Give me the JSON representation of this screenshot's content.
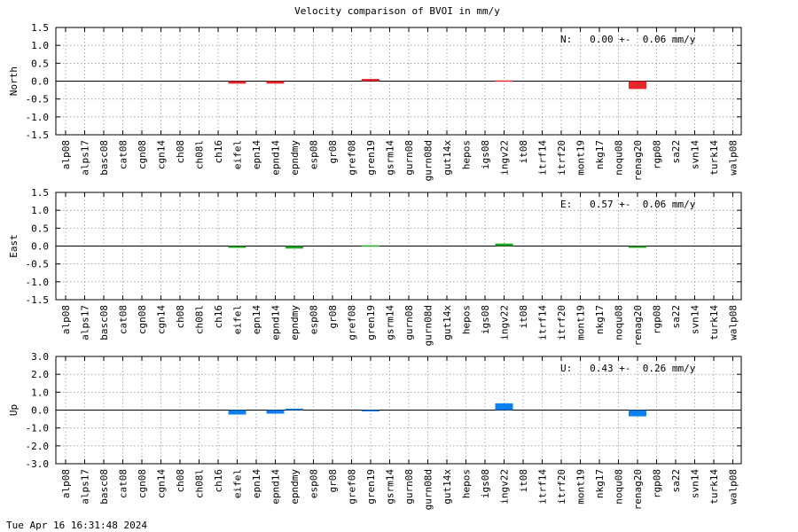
{
  "figure": {
    "title": "Velocity comparison of BVOI in mm/y",
    "timestamp": "Tue Apr 16 16:31:48 2024"
  },
  "chart_data": [
    {
      "type": "bar",
      "panel": "north",
      "ylabel": "North",
      "ylim": [
        -1.5,
        1.5
      ],
      "yticks": [
        "1.5",
        "1.0",
        "0.5",
        "0.0",
        "-0.5",
        "-1.0",
        "-1.5"
      ],
      "ytick_values": [
        1.5,
        1.0,
        0.5,
        0.0,
        -0.5,
        -1.0,
        -1.5
      ],
      "grid": true,
      "color": "#e8262b",
      "annotation": "N:   0.00 +-  0.06 mm/y",
      "categories": [
        "alp08",
        "alps17",
        "basc08",
        "cat08",
        "cgn08",
        "cgn14",
        "ch08",
        "ch08l",
        "ch16",
        "eifel",
        "epn14",
        "epnd14",
        "epndmy",
        "esp08",
        "gr08",
        "gref08",
        "gren19",
        "gsrm14",
        "gurn08",
        "gurn08d",
        "gut14x",
        "hepos",
        "igs08",
        "ingv22",
        "it08",
        "itrf14",
        "itrf20",
        "mont19",
        "nkg17",
        "noqu08",
        "renag20",
        "rgp08",
        "sa22",
        "svn14",
        "turk14",
        "walp08"
      ],
      "values": [
        null,
        null,
        null,
        null,
        null,
        null,
        null,
        null,
        null,
        -0.07,
        null,
        -0.07,
        null,
        null,
        null,
        null,
        0.06,
        null,
        null,
        null,
        null,
        null,
        null,
        0.02,
        null,
        null,
        null,
        null,
        null,
        null,
        -0.22,
        null,
        null,
        null,
        null,
        null
      ]
    },
    {
      "type": "bar",
      "panel": "east",
      "ylabel": "East",
      "ylim": [
        -1.5,
        1.5
      ],
      "yticks": [
        "1.5",
        "1.0",
        "0.5",
        "0.0",
        "-0.5",
        "-1.0",
        "-1.5"
      ],
      "ytick_values": [
        1.5,
        1.0,
        0.5,
        0.0,
        -0.5,
        -1.0,
        -1.5
      ],
      "grid": true,
      "color": "#21a621",
      "annotation": "E:   0.57 +-  0.06 mm/y",
      "categories": [
        "alp08",
        "alps17",
        "basc08",
        "cat08",
        "cgn08",
        "cgn14",
        "ch08",
        "ch08l",
        "ch16",
        "eifel",
        "epn14",
        "epnd14",
        "epndmy",
        "esp08",
        "gr08",
        "gref08",
        "gren19",
        "gsrm14",
        "gurn08",
        "gurn08d",
        "gut14x",
        "hepos",
        "igs08",
        "ingv22",
        "it08",
        "itrf14",
        "itrf20",
        "mont19",
        "nkg17",
        "noqu08",
        "renag20",
        "rgp08",
        "sa22",
        "svn14",
        "turk14",
        "walp08"
      ],
      "values": [
        null,
        null,
        null,
        null,
        null,
        null,
        null,
        null,
        null,
        -0.05,
        null,
        null,
        -0.07,
        null,
        null,
        null,
        0.02,
        null,
        null,
        null,
        null,
        null,
        null,
        0.07,
        null,
        null,
        null,
        null,
        null,
        null,
        -0.05,
        null,
        null,
        null,
        null,
        null
      ]
    },
    {
      "type": "bar",
      "panel": "up",
      "ylabel": "Up",
      "ylim": [
        -3.0,
        3.0
      ],
      "yticks": [
        "3.0",
        "2.0",
        "1.0",
        "0.0",
        "-1.0",
        "-2.0",
        "-3.0"
      ],
      "ytick_values": [
        3.0,
        2.0,
        1.0,
        0.0,
        -1.0,
        -2.0,
        -3.0
      ],
      "grid": true,
      "color": "#0f80f0",
      "annotation": "U:   0.43 +-  0.26 mm/y",
      "categories": [
        "alp08",
        "alps17",
        "basc08",
        "cat08",
        "cgn08",
        "cgn14",
        "ch08",
        "ch08l",
        "ch16",
        "eifel",
        "epn14",
        "epnd14",
        "epndmy",
        "esp08",
        "gr08",
        "gref08",
        "gren19",
        "gsrm14",
        "gurn08",
        "gurn08d",
        "gut14x",
        "hepos",
        "igs08",
        "ingv22",
        "it08",
        "itrf14",
        "itrf20",
        "mont19",
        "nkg17",
        "noqu08",
        "renag20",
        "rgp08",
        "sa22",
        "svn14",
        "turk14",
        "walp08"
      ],
      "values": [
        null,
        null,
        null,
        null,
        null,
        null,
        null,
        null,
        null,
        -0.25,
        null,
        -0.2,
        0.08,
        null,
        null,
        null,
        -0.05,
        null,
        null,
        null,
        null,
        null,
        null,
        0.38,
        null,
        null,
        null,
        null,
        null,
        null,
        -0.35,
        null,
        null,
        null,
        null,
        null
      ]
    }
  ]
}
